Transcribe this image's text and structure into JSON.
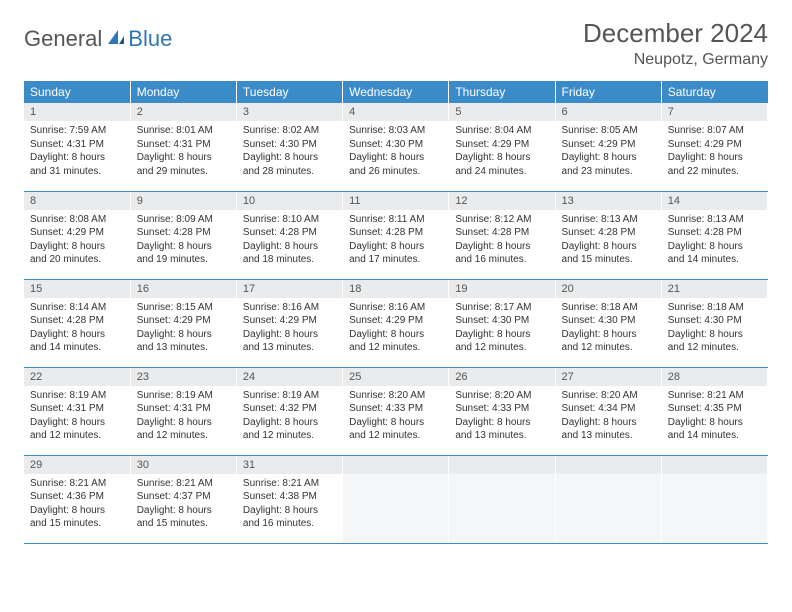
{
  "logo": {
    "part1": "General",
    "part2": "Blue"
  },
  "title": "December 2024",
  "location": "Neupotz, Germany",
  "colors": {
    "header_bg": "#3b8bc9",
    "header_text": "#ffffff",
    "daynum_bg": "#e9ebed",
    "border": "#3b8bc9",
    "logo_blue": "#2f76b8",
    "logo_gray": "#555555",
    "body_text": "#333333"
  },
  "weekdays": [
    "Sunday",
    "Monday",
    "Tuesday",
    "Wednesday",
    "Thursday",
    "Friday",
    "Saturday"
  ],
  "days": [
    {
      "n": "1",
      "sr": "7:59 AM",
      "ss": "4:31 PM",
      "dl": "8 hours and 31 minutes."
    },
    {
      "n": "2",
      "sr": "8:01 AM",
      "ss": "4:31 PM",
      "dl": "8 hours and 29 minutes."
    },
    {
      "n": "3",
      "sr": "8:02 AM",
      "ss": "4:30 PM",
      "dl": "8 hours and 28 minutes."
    },
    {
      "n": "4",
      "sr": "8:03 AM",
      "ss": "4:30 PM",
      "dl": "8 hours and 26 minutes."
    },
    {
      "n": "5",
      "sr": "8:04 AM",
      "ss": "4:29 PM",
      "dl": "8 hours and 24 minutes."
    },
    {
      "n": "6",
      "sr": "8:05 AM",
      "ss": "4:29 PM",
      "dl": "8 hours and 23 minutes."
    },
    {
      "n": "7",
      "sr": "8:07 AM",
      "ss": "4:29 PM",
      "dl": "8 hours and 22 minutes."
    },
    {
      "n": "8",
      "sr": "8:08 AM",
      "ss": "4:29 PM",
      "dl": "8 hours and 20 minutes."
    },
    {
      "n": "9",
      "sr": "8:09 AM",
      "ss": "4:28 PM",
      "dl": "8 hours and 19 minutes."
    },
    {
      "n": "10",
      "sr": "8:10 AM",
      "ss": "4:28 PM",
      "dl": "8 hours and 18 minutes."
    },
    {
      "n": "11",
      "sr": "8:11 AM",
      "ss": "4:28 PM",
      "dl": "8 hours and 17 minutes."
    },
    {
      "n": "12",
      "sr": "8:12 AM",
      "ss": "4:28 PM",
      "dl": "8 hours and 16 minutes."
    },
    {
      "n": "13",
      "sr": "8:13 AM",
      "ss": "4:28 PM",
      "dl": "8 hours and 15 minutes."
    },
    {
      "n": "14",
      "sr": "8:13 AM",
      "ss": "4:28 PM",
      "dl": "8 hours and 14 minutes."
    },
    {
      "n": "15",
      "sr": "8:14 AM",
      "ss": "4:28 PM",
      "dl": "8 hours and 14 minutes."
    },
    {
      "n": "16",
      "sr": "8:15 AM",
      "ss": "4:29 PM",
      "dl": "8 hours and 13 minutes."
    },
    {
      "n": "17",
      "sr": "8:16 AM",
      "ss": "4:29 PM",
      "dl": "8 hours and 13 minutes."
    },
    {
      "n": "18",
      "sr": "8:16 AM",
      "ss": "4:29 PM",
      "dl": "8 hours and 12 minutes."
    },
    {
      "n": "19",
      "sr": "8:17 AM",
      "ss": "4:30 PM",
      "dl": "8 hours and 12 minutes."
    },
    {
      "n": "20",
      "sr": "8:18 AM",
      "ss": "4:30 PM",
      "dl": "8 hours and 12 minutes."
    },
    {
      "n": "21",
      "sr": "8:18 AM",
      "ss": "4:30 PM",
      "dl": "8 hours and 12 minutes."
    },
    {
      "n": "22",
      "sr": "8:19 AM",
      "ss": "4:31 PM",
      "dl": "8 hours and 12 minutes."
    },
    {
      "n": "23",
      "sr": "8:19 AM",
      "ss": "4:31 PM",
      "dl": "8 hours and 12 minutes."
    },
    {
      "n": "24",
      "sr": "8:19 AM",
      "ss": "4:32 PM",
      "dl": "8 hours and 12 minutes."
    },
    {
      "n": "25",
      "sr": "8:20 AM",
      "ss": "4:33 PM",
      "dl": "8 hours and 12 minutes."
    },
    {
      "n": "26",
      "sr": "8:20 AM",
      "ss": "4:33 PM",
      "dl": "8 hours and 13 minutes."
    },
    {
      "n": "27",
      "sr": "8:20 AM",
      "ss": "4:34 PM",
      "dl": "8 hours and 13 minutes."
    },
    {
      "n": "28",
      "sr": "8:21 AM",
      "ss": "4:35 PM",
      "dl": "8 hours and 14 minutes."
    },
    {
      "n": "29",
      "sr": "8:21 AM",
      "ss": "4:36 PM",
      "dl": "8 hours and 15 minutes."
    },
    {
      "n": "30",
      "sr": "8:21 AM",
      "ss": "4:37 PM",
      "dl": "8 hours and 15 minutes."
    },
    {
      "n": "31",
      "sr": "8:21 AM",
      "ss": "4:38 PM",
      "dl": "8 hours and 16 minutes."
    }
  ],
  "labels": {
    "sunrise": "Sunrise:",
    "sunset": "Sunset:",
    "daylight": "Daylight:"
  }
}
